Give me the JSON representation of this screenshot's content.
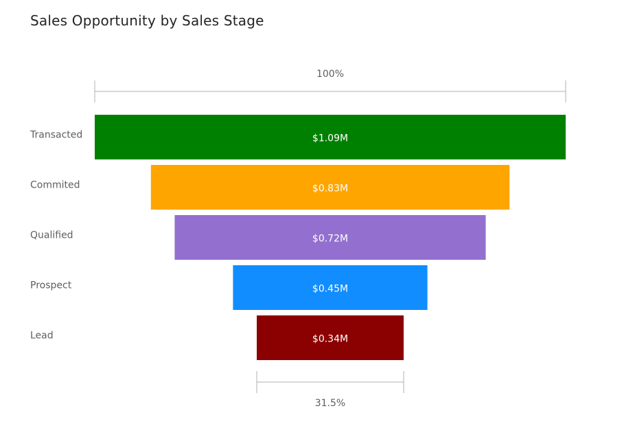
{
  "title": "Sales Opportunity by Sales Stage",
  "chart_data": {
    "type": "funnel",
    "title": "Sales Opportunity by Sales Stage",
    "categories": [
      "Transacted",
      "Commited",
      "Qualified",
      "Prospect",
      "Lead"
    ],
    "values": [
      1.09,
      0.83,
      0.72,
      0.45,
      0.34
    ],
    "value_labels": [
      "$1.09M",
      "$0.83M",
      "$0.72M",
      "$0.45M",
      "$0.34M"
    ],
    "colors": [
      "#008000",
      "#FFA500",
      "#9370CF",
      "#118DFF",
      "#8B0000"
    ],
    "top_percent_label": "100%",
    "bottom_percent_label": "31.5%"
  }
}
